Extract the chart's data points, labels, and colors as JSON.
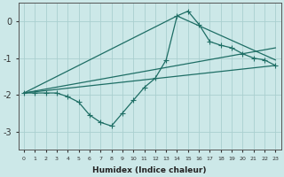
{
  "xlabel": "Humidex (Indice chaleur)",
  "ylabel": "",
  "bg_color": "#cce8e8",
  "grid_color": "#aacfcf",
  "line_color": "#1e6e65",
  "xlim": [
    -0.5,
    23.5
  ],
  "ylim": [
    -3.5,
    0.5
  ],
  "yticks": [
    0,
    -1,
    -2,
    -3
  ],
  "xticks": [
    0,
    1,
    2,
    3,
    4,
    5,
    6,
    7,
    8,
    9,
    10,
    11,
    12,
    13,
    14,
    15,
    16,
    17,
    18,
    19,
    20,
    21,
    22,
    23
  ],
  "zigzag_x": [
    0,
    1,
    2,
    3,
    4,
    5,
    6,
    7,
    8,
    9,
    10,
    11,
    12,
    13,
    14,
    15,
    16,
    17,
    18,
    19,
    20,
    21,
    22,
    23
  ],
  "zigzag_y": [
    -1.95,
    -1.95,
    -1.95,
    -1.95,
    -2.05,
    -2.2,
    -2.55,
    -2.75,
    -2.85,
    -2.5,
    -2.15,
    -1.8,
    -1.55,
    -1.05,
    0.15,
    0.28,
    -0.08,
    -0.55,
    -0.65,
    -0.72,
    -0.88,
    -1.0,
    -1.05,
    -1.2
  ],
  "line1_x": [
    0,
    23
  ],
  "line1_y": [
    -1.95,
    -1.2
  ],
  "line2_x": [
    0,
    23
  ],
  "line2_y": [
    -1.95,
    -0.72
  ],
  "line3_x": [
    0,
    14,
    23
  ],
  "line3_y": [
    -1.95,
    0.15,
    -1.05
  ],
  "origin_x": 0,
  "origin_y": -1.95
}
